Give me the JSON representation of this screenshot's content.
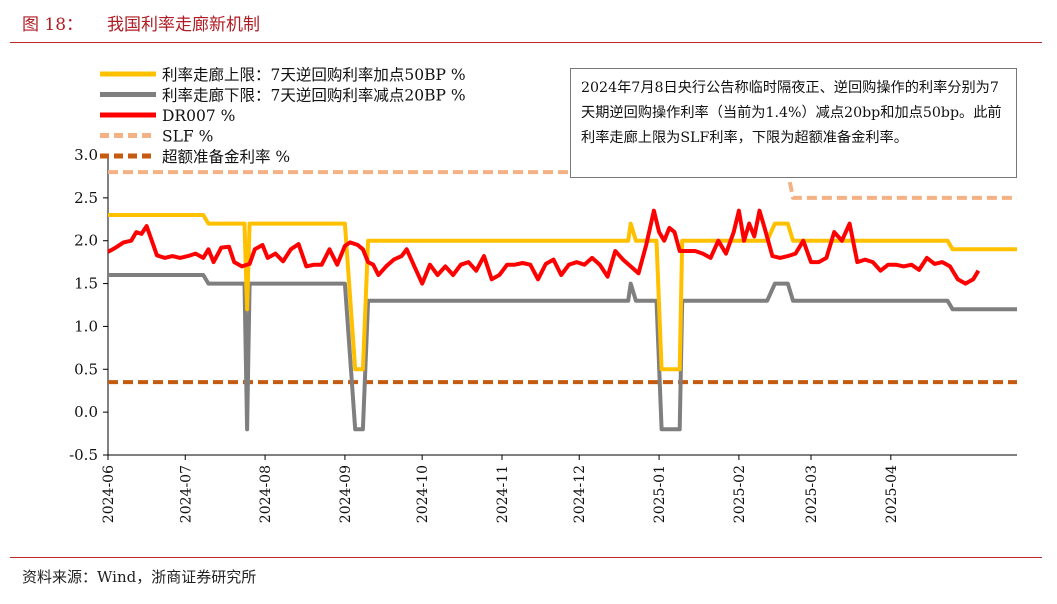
{
  "figure": {
    "label": "图 18：",
    "title": "我国利率走廊新机制",
    "source": "资料来源：Wind，浙商证券研究所",
    "annotation": "2024年7月8日央行公告称临时隔夜正、逆回购操作的利率分别为7天期逆回购操作利率（当前为1.4%）减点20bp和加点50bp。此前利率走廊上限为SLF利率，下限为超额准备金利率。"
  },
  "chart_data": {
    "type": "line",
    "title": "",
    "xlabel": "",
    "ylabel": "",
    "ylim": [
      -0.5,
      3.0
    ],
    "yticks": [
      3.0,
      2.5,
      2.0,
      1.5,
      1.0,
      0.5,
      0.0,
      -0.5
    ],
    "ytick_labels": [
      "3.0",
      "2.5",
      "2.0",
      "1.5",
      "1.0",
      "0.5",
      "0.0",
      "-0.5"
    ],
    "xlim": [
      "2024-06-01",
      "2025-05-20"
    ],
    "xticks": [
      "2024-06",
      "2024-07",
      "2024-08",
      "2024-09",
      "2024-10",
      "2024-11",
      "2024-12",
      "2025-01",
      "2025-02",
      "2025-03",
      "2025-04"
    ],
    "grid": false,
    "legend_position": "top-left",
    "series": [
      {
        "name": "利率走廊上限：7天逆回购利率加点50BP %",
        "color": "#ffc000",
        "style": "solid",
        "points": [
          [
            "2024-06-01",
            2.3
          ],
          [
            "2024-07-08",
            2.3
          ],
          [
            "2024-07-10",
            2.2
          ],
          [
            "2024-07-24",
            2.2
          ],
          [
            "2024-07-25",
            1.2
          ],
          [
            "2024-07-26",
            2.2
          ],
          [
            "2024-09-01",
            2.2
          ],
          [
            "2024-09-05",
            0.5
          ],
          [
            "2024-09-08",
            0.5
          ],
          [
            "2024-09-10",
            2.0
          ],
          [
            "2024-12-20",
            2.0
          ],
          [
            "2024-12-21",
            2.2
          ],
          [
            "2024-12-23",
            2.0
          ],
          [
            "2024-12-31",
            2.0
          ],
          [
            "2025-01-02",
            0.5
          ],
          [
            "2025-01-09",
            0.5
          ],
          [
            "2025-01-10",
            2.0
          ],
          [
            "2025-02-12",
            2.0
          ],
          [
            "2025-02-15",
            2.2
          ],
          [
            "2025-02-20",
            2.2
          ],
          [
            "2025-02-22",
            2.0
          ],
          [
            "2025-04-23",
            2.0
          ],
          [
            "2025-04-25",
            1.9
          ],
          [
            "2025-05-20",
            1.9
          ]
        ]
      },
      {
        "name": "利率走廊下限：7天逆回购利率减点20BP %",
        "color": "#7f7f7f",
        "style": "solid",
        "points": [
          [
            "2024-06-01",
            1.6
          ],
          [
            "2024-07-08",
            1.6
          ],
          [
            "2024-07-10",
            1.5
          ],
          [
            "2024-07-24",
            1.5
          ],
          [
            "2024-07-25",
            -0.2
          ],
          [
            "2024-07-26",
            1.5
          ],
          [
            "2024-09-01",
            1.5
          ],
          [
            "2024-09-05",
            -0.2
          ],
          [
            "2024-09-08",
            -0.2
          ],
          [
            "2024-09-10",
            1.3
          ],
          [
            "2024-12-20",
            1.3
          ],
          [
            "2024-12-21",
            1.5
          ],
          [
            "2024-12-23",
            1.3
          ],
          [
            "2024-12-31",
            1.3
          ],
          [
            "2025-01-02",
            -0.2
          ],
          [
            "2025-01-09",
            -0.2
          ],
          [
            "2025-01-10",
            1.3
          ],
          [
            "2025-02-12",
            1.3
          ],
          [
            "2025-02-15",
            1.5
          ],
          [
            "2025-02-20",
            1.5
          ],
          [
            "2025-02-22",
            1.3
          ],
          [
            "2025-04-23",
            1.3
          ],
          [
            "2025-04-25",
            1.2
          ],
          [
            "2025-05-20",
            1.2
          ]
        ]
      },
      {
        "name": "DR007 %",
        "color": "#ff0000",
        "style": "solid",
        "points": [
          [
            "2024-06-01",
            1.87
          ],
          [
            "2024-06-04",
            1.92
          ],
          [
            "2024-06-07",
            1.98
          ],
          [
            "2024-06-10",
            2.0
          ],
          [
            "2024-06-12",
            2.1
          ],
          [
            "2024-06-14",
            2.08
          ],
          [
            "2024-06-16",
            2.17
          ],
          [
            "2024-06-18",
            2.0
          ],
          [
            "2024-06-20",
            1.83
          ],
          [
            "2024-06-23",
            1.8
          ],
          [
            "2024-06-26",
            1.82
          ],
          [
            "2024-06-29",
            1.8
          ],
          [
            "2024-07-02",
            1.82
          ],
          [
            "2024-07-05",
            1.85
          ],
          [
            "2024-07-08",
            1.8
          ],
          [
            "2024-07-10",
            1.9
          ],
          [
            "2024-07-12",
            1.75
          ],
          [
            "2024-07-15",
            1.92
          ],
          [
            "2024-07-18",
            1.93
          ],
          [
            "2024-07-20",
            1.75
          ],
          [
            "2024-07-23",
            1.7
          ],
          [
            "2024-07-26",
            1.73
          ],
          [
            "2024-07-28",
            1.9
          ],
          [
            "2024-07-31",
            1.95
          ],
          [
            "2024-08-02",
            1.8
          ],
          [
            "2024-08-05",
            1.85
          ],
          [
            "2024-08-08",
            1.76
          ],
          [
            "2024-08-11",
            1.9
          ],
          [
            "2024-08-14",
            1.96
          ],
          [
            "2024-08-17",
            1.7
          ],
          [
            "2024-08-20",
            1.72
          ],
          [
            "2024-08-23",
            1.72
          ],
          [
            "2024-08-26",
            1.9
          ],
          [
            "2024-08-29",
            1.72
          ],
          [
            "2024-09-01",
            1.94
          ],
          [
            "2024-09-03",
            1.98
          ],
          [
            "2024-09-06",
            1.95
          ],
          [
            "2024-09-08",
            1.9
          ],
          [
            "2024-09-10",
            1.75
          ],
          [
            "2024-09-12",
            1.72
          ],
          [
            "2024-09-14",
            1.6
          ],
          [
            "2024-09-17",
            1.7
          ],
          [
            "2024-09-20",
            1.78
          ],
          [
            "2024-09-23",
            1.82
          ],
          [
            "2024-09-25",
            1.9
          ],
          [
            "2024-09-28",
            1.7
          ],
          [
            "2024-10-01",
            1.5
          ],
          [
            "2024-10-04",
            1.72
          ],
          [
            "2024-10-07",
            1.6
          ],
          [
            "2024-10-10",
            1.7
          ],
          [
            "2024-10-13",
            1.6
          ],
          [
            "2024-10-16",
            1.72
          ],
          [
            "2024-10-19",
            1.75
          ],
          [
            "2024-10-22",
            1.65
          ],
          [
            "2024-10-25",
            1.82
          ],
          [
            "2024-10-28",
            1.55
          ],
          [
            "2024-10-31",
            1.6
          ],
          [
            "2024-11-03",
            1.72
          ],
          [
            "2024-11-06",
            1.72
          ],
          [
            "2024-11-09",
            1.74
          ],
          [
            "2024-11-12",
            1.72
          ],
          [
            "2024-11-15",
            1.55
          ],
          [
            "2024-11-18",
            1.73
          ],
          [
            "2024-11-21",
            1.78
          ],
          [
            "2024-11-24",
            1.6
          ],
          [
            "2024-11-27",
            1.72
          ],
          [
            "2024-11-30",
            1.75
          ],
          [
            "2024-12-03",
            1.72
          ],
          [
            "2024-12-06",
            1.8
          ],
          [
            "2024-12-09",
            1.72
          ],
          [
            "2024-12-12",
            1.58
          ],
          [
            "2024-12-15",
            1.88
          ],
          [
            "2024-12-18",
            1.78
          ],
          [
            "2024-12-21",
            1.7
          ],
          [
            "2024-12-24",
            1.62
          ],
          [
            "2024-12-27",
            1.95
          ],
          [
            "2024-12-30",
            2.35
          ],
          [
            "2025-01-01",
            2.1
          ],
          [
            "2025-01-03",
            2.0
          ],
          [
            "2025-01-05",
            2.15
          ],
          [
            "2025-01-07",
            2.1
          ],
          [
            "2025-01-09",
            1.88
          ],
          [
            "2025-01-12",
            1.88
          ],
          [
            "2025-01-15",
            1.88
          ],
          [
            "2025-01-18",
            1.85
          ],
          [
            "2025-01-21",
            1.8
          ],
          [
            "2025-01-24",
            2.0
          ],
          [
            "2025-01-27",
            1.85
          ],
          [
            "2025-01-30",
            2.1
          ],
          [
            "2025-02-01",
            2.35
          ],
          [
            "2025-02-03",
            2.0
          ],
          [
            "2025-02-05",
            2.2
          ],
          [
            "2025-02-07",
            2.05
          ],
          [
            "2025-02-09",
            2.35
          ],
          [
            "2025-02-11",
            2.15
          ],
          [
            "2025-02-14",
            1.82
          ],
          [
            "2025-02-17",
            1.8
          ],
          [
            "2025-02-20",
            1.82
          ],
          [
            "2025-02-23",
            1.85
          ],
          [
            "2025-02-26",
            2.0
          ],
          [
            "2025-03-01",
            1.75
          ],
          [
            "2025-03-04",
            1.75
          ],
          [
            "2025-03-07",
            1.8
          ],
          [
            "2025-03-10",
            2.1
          ],
          [
            "2025-03-13",
            2.0
          ],
          [
            "2025-03-16",
            2.2
          ],
          [
            "2025-03-19",
            1.75
          ],
          [
            "2025-03-22",
            1.78
          ],
          [
            "2025-03-25",
            1.75
          ],
          [
            "2025-03-28",
            1.65
          ],
          [
            "2025-03-31",
            1.72
          ],
          [
            "2025-04-03",
            1.72
          ],
          [
            "2025-04-06",
            1.7
          ],
          [
            "2025-04-09",
            1.72
          ],
          [
            "2025-04-12",
            1.66
          ],
          [
            "2025-04-15",
            1.8
          ],
          [
            "2025-04-18",
            1.73
          ],
          [
            "2025-04-21",
            1.75
          ],
          [
            "2025-04-24",
            1.7
          ],
          [
            "2025-04-27",
            1.55
          ],
          [
            "2025-04-30",
            1.5
          ],
          [
            "2025-05-03",
            1.55
          ],
          [
            "2025-05-05",
            1.65
          ]
        ]
      },
      {
        "name": "SLF %",
        "color": "#f4b183",
        "style": "dashed",
        "points": [
          [
            "2024-06-01",
            2.8
          ],
          [
            "2025-02-20",
            2.8
          ],
          [
            "2025-02-22",
            2.5
          ],
          [
            "2025-05-20",
            2.5
          ]
        ]
      },
      {
        "name": "超额准备金利率 %",
        "color": "#c55a11",
        "style": "dashed",
        "points": [
          [
            "2024-06-01",
            0.35
          ],
          [
            "2025-05-20",
            0.35
          ]
        ]
      }
    ]
  }
}
